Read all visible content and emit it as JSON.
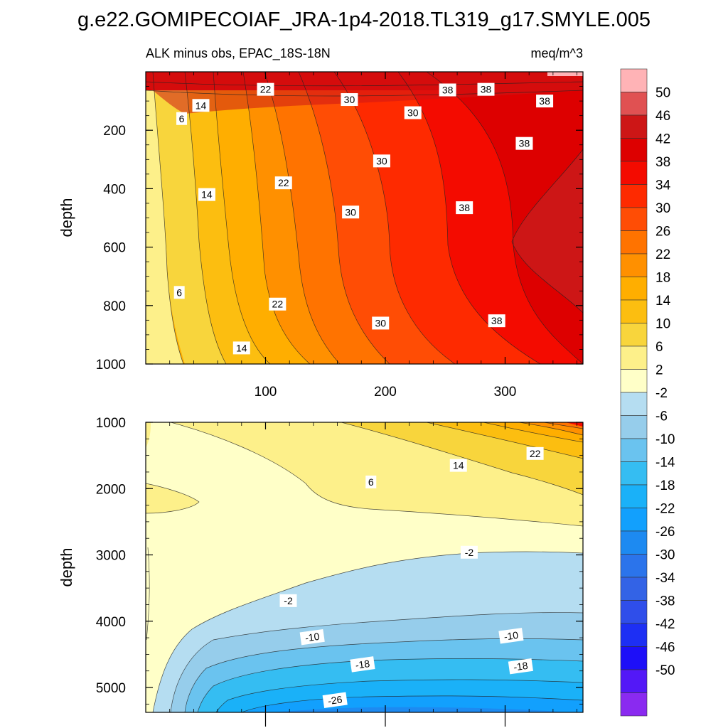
{
  "title": "g.e22.GOMIPECOIAF_JRA-1p4-2018.TL319_g17.SMYLE.005",
  "chart_data": [
    {
      "type": "contour",
      "panel": "upper",
      "subtitle_left": "ALK minus obs, EPAC_18S-18N",
      "subtitle_right": "meq/m^3",
      "ylabel": "depth",
      "xlim": [
        0,
        365
      ],
      "ylim": [
        1000,
        0
      ],
      "x_ticks": [
        100,
        200,
        300
      ],
      "x_tick_labels": [
        "100",
        "200",
        "300"
      ],
      "y_ticks": [
        200,
        400,
        600,
        800,
        1000
      ],
      "y_tick_labels": [
        "200",
        "400",
        "600",
        "800",
        "1000"
      ],
      "contour_labels": [
        {
          "text": "22",
          "x": 100,
          "y": 60
        },
        {
          "text": "14",
          "x": 46,
          "y": 115
        },
        {
          "text": "30",
          "x": 170,
          "y": 95
        },
        {
          "text": "38",
          "x": 252,
          "y": 62
        },
        {
          "text": "38",
          "x": 284,
          "y": 60
        },
        {
          "text": "38",
          "x": 333,
          "y": 100
        },
        {
          "text": "30",
          "x": 223,
          "y": 140
        },
        {
          "text": "6",
          "x": 30,
          "y": 160
        },
        {
          "text": "38",
          "x": 316,
          "y": 245
        },
        {
          "text": "30",
          "x": 197,
          "y": 305
        },
        {
          "text": "22",
          "x": 115,
          "y": 380
        },
        {
          "text": "14",
          "x": 51,
          "y": 420
        },
        {
          "text": "38",
          "x": 266,
          "y": 465
        },
        {
          "text": "30",
          "x": 171,
          "y": 480
        },
        {
          "text": "6",
          "x": 28,
          "y": 755
        },
        {
          "text": "22",
          "x": 110,
          "y": 795
        },
        {
          "text": "30",
          "x": 196,
          "y": 860
        },
        {
          "text": "38",
          "x": 293,
          "y": 852
        },
        {
          "text": "14",
          "x": 80,
          "y": 945
        }
      ]
    },
    {
      "type": "contour",
      "panel": "lower",
      "ylabel": "depth",
      "xlim": [
        0,
        365
      ],
      "ylim": [
        5375,
        1000
      ],
      "x_ticks": [
        100,
        200,
        300
      ],
      "y_ticks": [
        1000,
        2000,
        3000,
        4000,
        5000
      ],
      "y_tick_labels": [
        "1000",
        "2000",
        "3000",
        "4000",
        "5000"
      ],
      "contour_labels": [
        {
          "text": "22",
          "x": 325,
          "y": 1470
        },
        {
          "text": "14",
          "x": 261,
          "y": 1650
        },
        {
          "text": "6",
          "x": 188,
          "y": 1900
        },
        {
          "text": "-2",
          "x": 270,
          "y": 2960
        },
        {
          "text": "-2",
          "x": 119,
          "y": 3690
        },
        {
          "text": "-10",
          "x": 139,
          "y": 4240
        },
        {
          "text": "-10",
          "x": 305,
          "y": 4220
        },
        {
          "text": "-18",
          "x": 181,
          "y": 4650
        },
        {
          "text": "-18",
          "x": 313,
          "y": 4680
        },
        {
          "text": "-26",
          "x": 158,
          "y": 5190
        }
      ]
    }
  ],
  "colorbar": {
    "labels": [
      "50",
      "46",
      "42",
      "38",
      "34",
      "30",
      "26",
      "22",
      "18",
      "14",
      "10",
      "6",
      "2",
      "-2",
      "-6",
      "-10",
      "-14",
      "-18",
      "-22",
      "-26",
      "-30",
      "-34",
      "-38",
      "-42",
      "-46",
      "-50"
    ],
    "colors": [
      "#ffb3b6",
      "#e05152",
      "#cd1616",
      "#dd0000",
      "#f40b00",
      "#fe2a00",
      "#ff4d05",
      "#ff7300",
      "#ff9000",
      "#ffae00",
      "#fcbe10",
      "#f8d53c",
      "#fdf08a",
      "#ffffc8",
      "#b5ddf1",
      "#96cdeb",
      "#6ac3ef",
      "#35bdf2",
      "#1ab1f8",
      "#12a0fd",
      "#1d8af1",
      "#2b74eb",
      "#3363e6",
      "#2f4eea",
      "#1d2ff4",
      "#1d0ff8",
      "#5318f7",
      "#8a2af0"
    ]
  }
}
